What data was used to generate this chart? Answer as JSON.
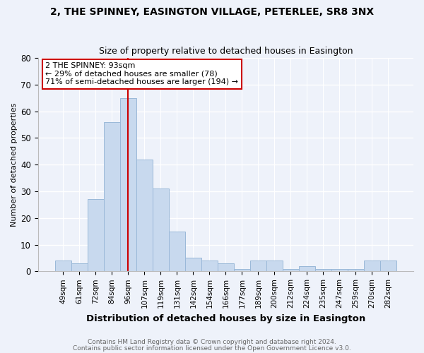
{
  "title": "2, THE SPINNEY, EASINGTON VILLAGE, PETERLEE, SR8 3NX",
  "subtitle": "Size of property relative to detached houses in Easington",
  "xlabel": "Distribution of detached houses by size in Easington",
  "ylabel": "Number of detached properties",
  "bar_labels": [
    "49sqm",
    "61sqm",
    "72sqm",
    "84sqm",
    "96sqm",
    "107sqm",
    "119sqm",
    "131sqm",
    "142sqm",
    "154sqm",
    "166sqm",
    "177sqm",
    "189sqm",
    "200sqm",
    "212sqm",
    "224sqm",
    "235sqm",
    "247sqm",
    "259sqm",
    "270sqm",
    "282sqm"
  ],
  "bar_values": [
    4,
    3,
    27,
    56,
    65,
    42,
    31,
    15,
    5,
    4,
    3,
    1,
    4,
    4,
    1,
    2,
    1,
    1,
    1,
    4,
    4
  ],
  "bar_color": "#c8d9ee",
  "bar_edge_color": "#9ab8d8",
  "vline_x": 4.0,
  "vline_color": "#cc0000",
  "annotation_text": "2 THE SPINNEY: 93sqm\n← 29% of detached houses are smaller (78)\n71% of semi-detached houses are larger (194) →",
  "annotation_box_color": "#ffffff",
  "annotation_box_edge": "#cc0000",
  "ylim": [
    0,
    80
  ],
  "yticks": [
    0,
    10,
    20,
    30,
    40,
    50,
    60,
    70,
    80
  ],
  "footer1": "Contains HM Land Registry data © Crown copyright and database right 2024.",
  "footer2": "Contains public sector information licensed under the Open Government Licence v3.0.",
  "bg_color": "#eef2fa",
  "title_fontsize": 10,
  "subtitle_fontsize": 9,
  "ylabel_fontsize": 8,
  "xlabel_fontsize": 9.5,
  "tick_fontsize": 7.5,
  "footer_fontsize": 6.5,
  "annot_fontsize": 8
}
